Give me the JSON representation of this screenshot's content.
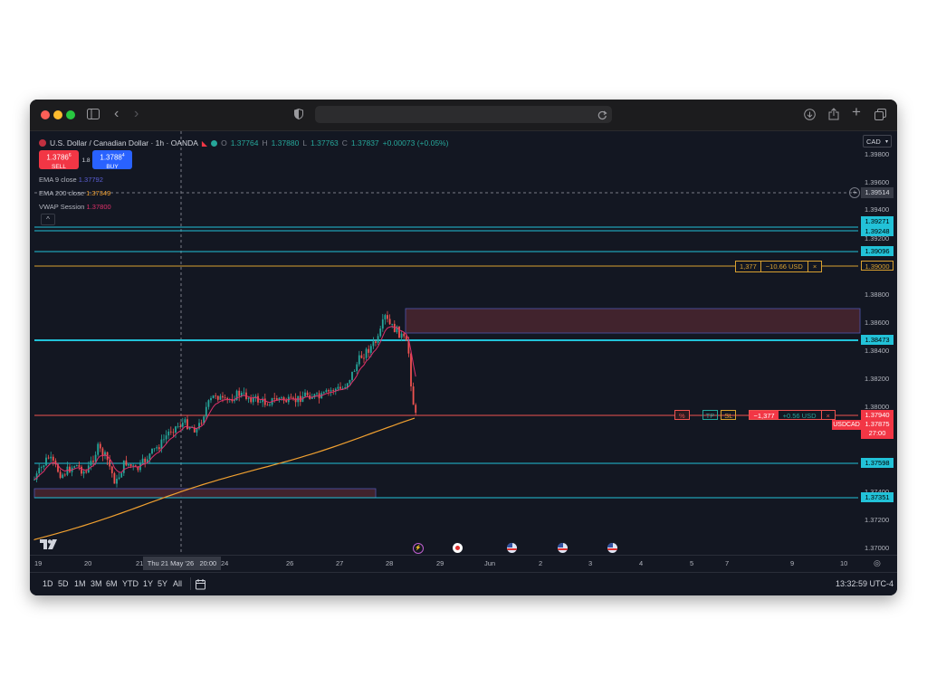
{
  "symbol": {
    "title": "U.S. Dollar / Canadian Dollar · 1h · OANDA",
    "open": "1.37764",
    "high": "1.37880",
    "low": "1.37763",
    "close": "1.37837",
    "change": "+0.00073 (+0.05%)"
  },
  "trade": {
    "sell_price": "1.3786",
    "sell_sup": "6",
    "sell_label": "SELL",
    "spread": "1.8",
    "buy_price": "1.3788",
    "buy_sup": "4",
    "buy_label": "BUY"
  },
  "indicators": [
    {
      "name": "EMA 9 close",
      "value": "1.37792",
      "color": "#5b5fd6"
    },
    {
      "name": "EMA 200 close",
      "value": "1.37349",
      "color": "#f0a030"
    },
    {
      "name": "VWAP Session",
      "value": "1.37800",
      "color": "#e0306a"
    }
  ],
  "currency_select": "CAD",
  "price_axis": [
    "1.39800",
    "1.39600",
    "1.39400",
    "1.39200",
    "1.38800",
    "1.38600",
    "1.38400",
    "1.38200",
    "1.38000",
    "1.37600",
    "1.37400",
    "1.37200",
    "1.37000"
  ],
  "price_tags": [
    "1.39514",
    "1.39271",
    "1.39248",
    "1.39096",
    "1.39000",
    "1.38473",
    "1.37940",
    "1.37875",
    "27:00",
    "1.37598",
    "1.37351"
  ],
  "symbol_tag": "USDCAD",
  "order_top": {
    "qty": "1,377",
    "pnl": "−10.66 USD",
    "close": "×"
  },
  "position": {
    "pct": "%",
    "tp": "TP",
    "sl": "SL",
    "qty": "−1,377",
    "pnl": "+0.56 USD",
    "close": "×"
  },
  "time_axis": [
    "19",
    "20",
    "21",
    "24",
    "26",
    "27",
    "28",
    "29",
    "Jun",
    "2",
    "3",
    "4",
    "5",
    "7",
    "9",
    "10"
  ],
  "crosshair_date": "Thu 21 May '26   20:00",
  "timeframes": [
    "1D",
    "5D",
    "1M",
    "3M",
    "6M",
    "YTD",
    "1Y",
    "5Y",
    "All"
  ],
  "clock": "13:32:59 UTC-4",
  "colors": {
    "bg": "#131722",
    "up": "#26a69a",
    "down": "#ef5350",
    "cyan": "#22c2d8",
    "orange": "#f0a030",
    "tag_blue": "#2962ff",
    "tag_red": "#f23645"
  },
  "icons": [
    "sidebar-icon",
    "back-icon",
    "forward-icon",
    "shield-icon",
    "reload-icon",
    "download-icon",
    "share-icon",
    "plus-icon",
    "tabs-icon",
    "calendar-range-icon",
    "settings-icon",
    "tradingview-logo-icon"
  ]
}
